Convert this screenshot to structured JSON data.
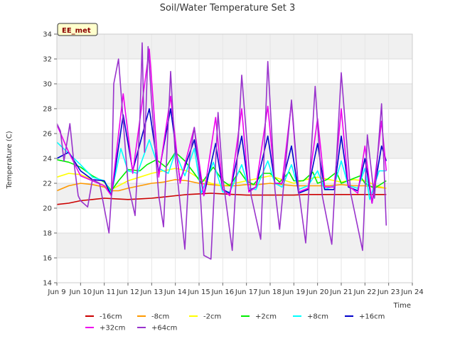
{
  "chart_data": {
    "type": "line",
    "title": "Soil/Water Temperature Set 3",
    "xlabel": "Time",
    "ylabel": "Temperature (C)",
    "badge": "EE_met",
    "xlim": [
      9,
      24
    ],
    "ylim": [
      14,
      34
    ],
    "x_ticks": [
      9,
      10,
      11,
      12,
      13,
      14,
      15,
      16,
      17,
      18,
      19,
      20,
      21,
      22,
      23,
      24
    ],
    "x_tick_labels": [
      "Jun 9",
      "Jun 10",
      "Jun 11",
      "Jun 12",
      "Jun 13",
      "Jun 14",
      "Jun 15",
      "Jun 16",
      "Jun 17",
      "Jun 18",
      "Jun 19",
      "Jun 20",
      "Jun 21",
      "Jun 22",
      "Jun 23",
      "Jun 24"
    ],
    "y_ticks": [
      14,
      16,
      18,
      20,
      22,
      24,
      26,
      28,
      30,
      32,
      34
    ],
    "y_tick_labels": [
      "14",
      "16",
      "18",
      "20",
      "22",
      "24",
      "26",
      "28",
      "30",
      "32",
      "34"
    ],
    "grid": true,
    "legend": "bottom",
    "series": [
      {
        "name": "-16cm",
        "color": "#cc0000",
        "x": [
          9.0,
          9.5,
          10.0,
          10.5,
          11.0,
          11.5,
          12.0,
          12.5,
          13.0,
          13.5,
          14.0,
          14.5,
          15.0,
          15.5,
          16.0,
          16.5,
          17.0,
          17.5,
          18.0,
          18.5,
          19.0,
          19.5,
          20.0,
          20.5,
          21.0,
          21.5,
          22.0,
          22.5,
          22.9
        ],
        "y": [
          20.3,
          20.4,
          20.6,
          20.7,
          20.8,
          20.75,
          20.7,
          20.75,
          20.8,
          20.9,
          21.0,
          21.1,
          21.15,
          21.2,
          21.15,
          21.1,
          21.05,
          21.05,
          21.05,
          21.05,
          21.05,
          21.1,
          21.1,
          21.1,
          21.1,
          21.1,
          21.1,
          21.1,
          21.1
        ]
      },
      {
        "name": "-8cm",
        "color": "#ff9900",
        "x": [
          9.0,
          9.5,
          10.0,
          10.5,
          11.0,
          11.3,
          11.6,
          12.0,
          12.5,
          13.0,
          13.5,
          14.0,
          14.5,
          15.0,
          15.5,
          16.0,
          16.5,
          17.0,
          17.5,
          18.0,
          18.5,
          19.0,
          19.5,
          20.0,
          20.5,
          21.0,
          21.5,
          22.0,
          22.5,
          22.9
        ],
        "y": [
          21.4,
          21.8,
          22.0,
          21.9,
          21.7,
          21.4,
          21.4,
          21.6,
          21.8,
          22.0,
          22.1,
          22.3,
          22.2,
          22.0,
          21.9,
          21.8,
          21.8,
          21.9,
          21.9,
          22.0,
          21.9,
          21.8,
          21.8,
          21.8,
          21.8,
          21.9,
          21.8,
          21.8,
          21.7,
          21.6
        ]
      },
      {
        "name": "-2cm",
        "color": "#ffff00",
        "x": [
          9.0,
          9.5,
          10.0,
          10.5,
          11.0,
          11.3,
          11.6,
          12.0,
          12.5,
          13.0,
          13.5,
          14.0,
          14.5,
          15.0,
          15.5,
          16.0,
          16.5,
          17.0,
          17.5,
          18.0,
          18.5,
          19.0,
          19.5,
          20.0,
          20.5,
          21.0,
          21.5,
          22.0,
          22.5,
          22.9
        ],
        "y": [
          22.5,
          22.8,
          22.7,
          22.3,
          21.8,
          21.5,
          21.8,
          22.2,
          22.5,
          22.8,
          23.0,
          23.2,
          23.0,
          22.4,
          22.0,
          21.8,
          22.0,
          22.2,
          22.4,
          22.6,
          22.3,
          22.0,
          22.3,
          22.5,
          22.3,
          22.1,
          22.3,
          22.2,
          21.8,
          21.6
        ]
      },
      {
        "name": "+2cm",
        "color": "#00ee00",
        "x": [
          9.0,
          9.5,
          10.0,
          10.5,
          11.0,
          11.3,
          11.6,
          12.0,
          12.5,
          12.8,
          13.2,
          13.6,
          14.0,
          14.4,
          14.8,
          15.1,
          15.6,
          16.0,
          16.3,
          16.7,
          17.0,
          17.3,
          17.7,
          18.0,
          18.4,
          18.8,
          19.0,
          19.4,
          19.8,
          20.0,
          20.4,
          20.8,
          21.0,
          21.4,
          21.8,
          22.0,
          22.4,
          22.9
        ],
        "y": [
          23.9,
          23.7,
          23.3,
          22.6,
          22.1,
          21.4,
          22.2,
          23.1,
          23.0,
          23.5,
          23.9,
          23.3,
          24.5,
          23.8,
          22.8,
          22.0,
          23.3,
          22.2,
          21.8,
          23.0,
          22.2,
          21.9,
          22.8,
          22.8,
          22.1,
          22.9,
          22.2,
          22.2,
          22.9,
          22.0,
          22.3,
          22.9,
          22.0,
          22.3,
          22.6,
          22.0,
          21.6,
          22.2
        ]
      },
      {
        "name": "+8cm",
        "color": "#00ffff",
        "x": [
          9.0,
          9.5,
          10.0,
          10.5,
          11.0,
          11.3,
          11.7,
          12.0,
          12.4,
          12.9,
          13.3,
          13.7,
          14.0,
          14.4,
          14.8,
          15.1,
          15.6,
          16.0,
          16.3,
          16.8,
          17.1,
          17.4,
          17.9,
          18.2,
          18.5,
          18.9,
          19.2,
          19.6,
          20.0,
          20.3,
          20.7,
          21.0,
          21.3,
          21.7,
          22.0,
          22.2,
          22.6,
          22.9
        ],
        "y": [
          25.3,
          24.4,
          23.5,
          22.5,
          22.2,
          21.2,
          24.8,
          23.0,
          22.8,
          25.5,
          23.2,
          22.8,
          24.5,
          22.6,
          24.8,
          21.2,
          23.7,
          21.3,
          21.3,
          23.5,
          21.6,
          21.5,
          23.8,
          22.0,
          21.7,
          23.5,
          21.5,
          21.8,
          23.0,
          21.5,
          21.8,
          23.8,
          21.8,
          21.6,
          23.2,
          20.7,
          23.0,
          23.0
        ]
      },
      {
        "name": "+16cm",
        "color": "#0000cc",
        "x": [
          9.0,
          9.5,
          10.0,
          10.5,
          11.0,
          11.3,
          11.8,
          12.2,
          12.9,
          13.3,
          13.8,
          14.2,
          14.8,
          15.2,
          15.7,
          16.0,
          16.3,
          16.8,
          17.1,
          17.4,
          17.9,
          18.2,
          18.5,
          18.9,
          19.2,
          19.6,
          20.0,
          20.3,
          20.7,
          21.0,
          21.3,
          21.7,
          22.0,
          22.3,
          22.7,
          22.9
        ],
        "y": [
          24.0,
          24.5,
          23.0,
          22.3,
          22.2,
          21.0,
          27.5,
          23.0,
          28.0,
          22.8,
          28.0,
          22.2,
          25.5,
          21.0,
          25.2,
          21.5,
          21.2,
          25.8,
          21.4,
          21.7,
          25.8,
          22.0,
          22.0,
          25.0,
          21.2,
          21.5,
          25.2,
          21.5,
          21.5,
          25.8,
          21.7,
          21.4,
          24.0,
          20.4,
          25.0,
          23.8
        ]
      },
      {
        "name": "+32cm",
        "color": "#ee00ee",
        "x": [
          9.0,
          9.5,
          10.0,
          10.5,
          11.0,
          11.3,
          11.8,
          12.2,
          12.9,
          13.3,
          13.8,
          14.2,
          14.8,
          15.2,
          15.7,
          16.0,
          16.3,
          16.8,
          17.1,
          17.4,
          17.9,
          18.2,
          18.5,
          18.9,
          19.2,
          19.6,
          20.0,
          20.3,
          20.7,
          21.0,
          21.3,
          21.7,
          22.0,
          22.3,
          22.7,
          22.9
        ],
        "y": [
          26.7,
          24.5,
          22.6,
          22.2,
          21.8,
          21.0,
          29.2,
          22.8,
          32.8,
          22.5,
          29.0,
          22.0,
          26.5,
          21.0,
          27.3,
          21.5,
          21.0,
          28.0,
          21.3,
          21.7,
          28.2,
          22.0,
          22.0,
          28.5,
          21.3,
          21.6,
          27.2,
          21.7,
          21.7,
          28.0,
          21.8,
          21.2,
          25.0,
          20.4,
          27.0,
          23.0
        ]
      },
      {
        "name": "+64cm",
        "color": "#9933cc",
        "x": [
          9.0,
          9.15,
          9.3,
          9.5,
          9.55,
          9.7,
          9.9,
          10.0,
          10.3,
          10.5,
          10.8,
          11.0,
          11.2,
          11.3,
          11.4,
          11.6,
          11.8,
          12.0,
          12.3,
          12.5,
          12.6,
          12.7,
          12.85,
          13.0,
          13.3,
          13.5,
          13.8,
          14.0,
          14.4,
          14.6,
          14.8,
          15.0,
          15.2,
          15.5,
          15.8,
          16.0,
          16.4,
          16.8,
          17.2,
          17.6,
          17.9,
          18.2,
          18.4,
          18.9,
          19.2,
          19.5,
          19.9,
          20.2,
          20.6,
          21.0,
          21.4,
          21.9,
          22.1,
          22.4,
          22.7,
          22.9
        ],
        "y": [
          26.8,
          26.2,
          23.8,
          26.2,
          26.8,
          24.0,
          21.0,
          20.6,
          20.1,
          22.3,
          22.0,
          20.0,
          18.0,
          21.0,
          30.0,
          32.0,
          27.0,
          22.0,
          19.4,
          27.0,
          33.3,
          24.5,
          33.0,
          28.5,
          21.0,
          18.5,
          31.0,
          24.0,
          16.7,
          24.0,
          26.5,
          23.0,
          16.2,
          15.9,
          27.7,
          22.5,
          16.6,
          30.7,
          21.0,
          17.5,
          31.8,
          21.5,
          18.3,
          28.7,
          21.5,
          17.2,
          29.8,
          21.0,
          17.1,
          30.9,
          21.2,
          16.6,
          25.9,
          20.8,
          28.4,
          18.6
        ]
      }
    ]
  }
}
